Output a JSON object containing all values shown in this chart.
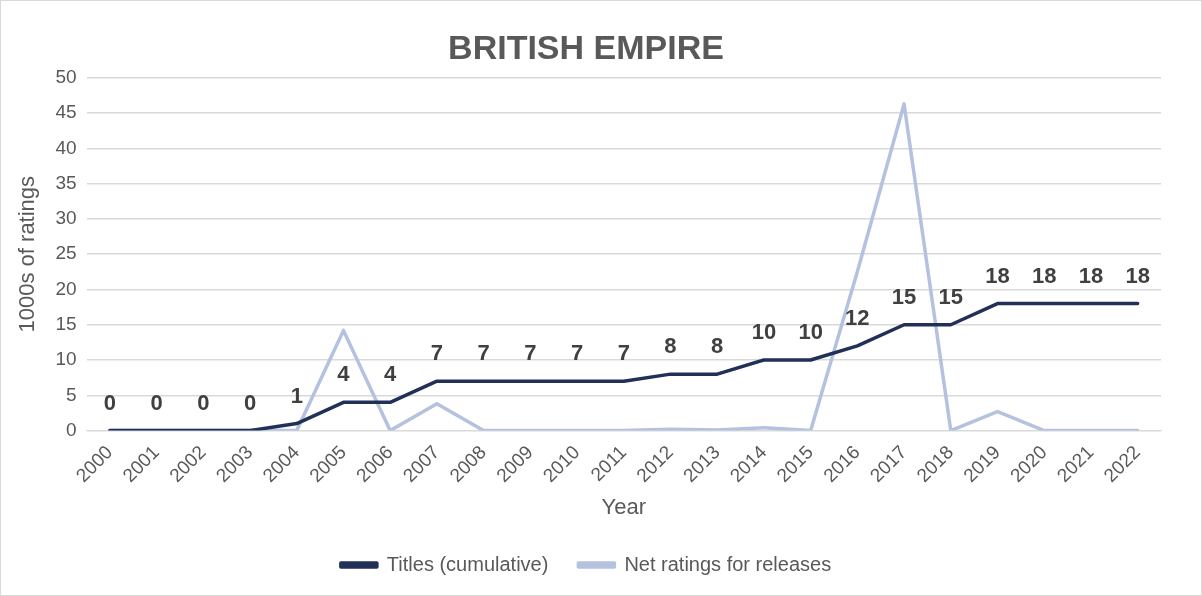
{
  "chart_data": {
    "type": "line",
    "title": "BRITISH EMPIRE",
    "xlabel": "Year",
    "ylabel": "1000s of ratings",
    "categories": [
      "2000",
      "2001",
      "2002",
      "2003",
      "2004",
      "2005",
      "2006",
      "2007",
      "2008",
      "2009",
      "2010",
      "2011",
      "2012",
      "2013",
      "2014",
      "2015",
      "2016",
      "2017",
      "2018",
      "2019",
      "2020",
      "2021",
      "2022"
    ],
    "series": [
      {
        "name": "Titles (cumulative)",
        "color": "#203057",
        "values": [
          0,
          0,
          0,
          0,
          1,
          4,
          4,
          7,
          7,
          7,
          7,
          7,
          8,
          8,
          10,
          10,
          12,
          15,
          15,
          18,
          18,
          18,
          18
        ],
        "value_labels": [
          "0",
          "0",
          "0",
          "0",
          "1",
          "4",
          "4",
          "7",
          "7",
          "7",
          "7",
          "7",
          "8",
          "8",
          "10",
          "10",
          "12",
          "15",
          "15",
          "18",
          "18",
          "18",
          "18"
        ]
      },
      {
        "name": "Net ratings for releases",
        "color": "#b4c2e0",
        "values": [
          0,
          0,
          0,
          0,
          0,
          14.2,
          0,
          3.8,
          0,
          0,
          0,
          0,
          0.2,
          0.1,
          0.4,
          0,
          22.5,
          46.3,
          0,
          2.7,
          0,
          0,
          0
        ]
      }
    ],
    "ylim": [
      0,
      50
    ],
    "yticks": [
      0,
      5,
      10,
      15,
      20,
      25,
      30,
      35,
      40,
      45,
      50
    ],
    "grid": "y",
    "legend": "bottom",
    "marker": "none",
    "line_style": "solid"
  }
}
